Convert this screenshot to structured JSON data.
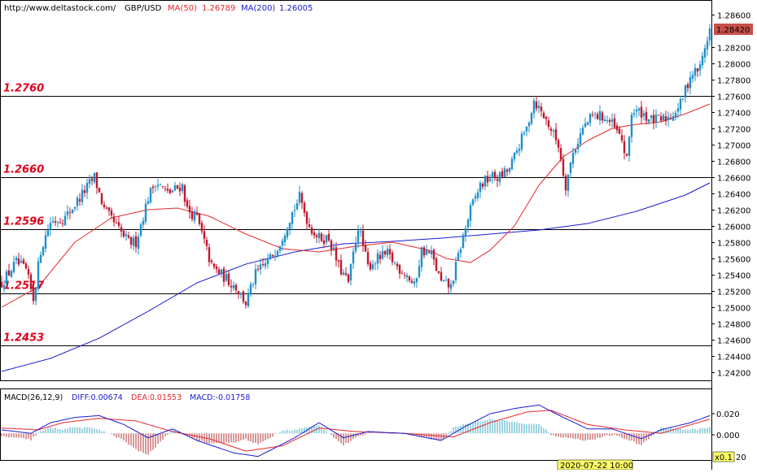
{
  "header": {
    "url": "http://www.deltastock.com/",
    "symbol": "GBP/USD",
    "ma50_label": "MA(50)",
    "ma50_value": "1.26789",
    "ma200_label": "MA(200)",
    "ma200_value": "1.26005"
  },
  "colors": {
    "candle_up": "#1e90c8",
    "candle_down": "#c0182e",
    "ma50": "#e8262b",
    "ma200": "#1a1ad0",
    "level_text": "#e0001a",
    "diff": "#1a1ad0",
    "dea": "#e8262b",
    "hist_pos": "#3aa8c0",
    "hist_neg": "#b03030",
    "last_price_box": "#c8504a"
  },
  "levels": [
    {
      "label": "1.2760",
      "value": 1.276
    },
    {
      "label": "1.2660",
      "value": 1.266
    },
    {
      "label": "1.2596",
      "value": 1.2596
    },
    {
      "label": "1.2517",
      "value": 1.2517
    },
    {
      "label": "1.2453",
      "value": 1.2453
    }
  ],
  "price_axis": {
    "min": 1.241,
    "max": 1.2878,
    "ticks": [
      "1.28600",
      "1.28200",
      "1.28000",
      "1.27800",
      "1.27600",
      "1.27400",
      "1.27200",
      "1.27000",
      "1.26800",
      "1.26600",
      "1.26400",
      "1.26200",
      "1.26000",
      "1.25800",
      "1.25600",
      "1.25400",
      "1.25200",
      "1.25000",
      "1.24800",
      "1.24600",
      "1.24400",
      "1.24200"
    ],
    "last_price": "1.28420"
  },
  "macd_panel": {
    "label": "MACD(26,12,9)",
    "diff_label": "DIFF:0.00674",
    "dea_label": "DEA:0.01553",
    "macd_label": "MACD:-0.01758",
    "ticks": [
      "0.020",
      "0.000"
    ],
    "multiplier": "x0.1",
    "tick_partial": "20",
    "ymin": -0.03,
    "ymax": 0.035
  },
  "time_axis": {
    "crosshair_time": "2020-07-22 10:00"
  },
  "chart_data": {
    "type": "candlestick",
    "title": "GBP/USD",
    "anchors": [
      [
        0,
        1.253
      ],
      [
        6,
        1.2555
      ],
      [
        10,
        1.2545
      ],
      [
        13,
        1.251
      ],
      [
        16,
        1.257
      ],
      [
        20,
        1.2605
      ],
      [
        26,
        1.261
      ],
      [
        32,
        1.2635
      ],
      [
        38,
        1.266
      ],
      [
        42,
        1.262
      ],
      [
        48,
        1.2595
      ],
      [
        52,
        1.258
      ],
      [
        55,
        1.258
      ],
      [
        60,
        1.2635
      ],
      [
        63,
        1.2655
      ],
      [
        68,
        1.264
      ],
      [
        74,
        1.265
      ],
      [
        76,
        1.262
      ],
      [
        80,
        1.261
      ],
      [
        86,
        1.255
      ],
      [
        90,
        1.254
      ],
      [
        96,
        1.2525
      ],
      [
        100,
        1.2505
      ],
      [
        104,
        1.254
      ],
      [
        110,
        1.256
      ],
      [
        114,
        1.258
      ],
      [
        118,
        1.261
      ],
      [
        122,
        1.2635
      ],
      [
        126,
        1.26
      ],
      [
        130,
        1.2585
      ],
      [
        134,
        1.2585
      ],
      [
        138,
        1.255
      ],
      [
        142,
        1.253
      ],
      [
        146,
        1.26
      ],
      [
        150,
        1.255
      ],
      [
        154,
        1.256
      ],
      [
        158,
        1.2565
      ],
      [
        162,
        1.255
      ],
      [
        166,
        1.254
      ],
      [
        169,
        1.2525
      ],
      [
        172,
        1.257
      ],
      [
        176,
        1.2565
      ],
      [
        180,
        1.253
      ],
      [
        184,
        1.2525
      ],
      [
        188,
        1.2575
      ],
      [
        192,
        1.262
      ],
      [
        196,
        1.265
      ],
      [
        200,
        1.266
      ],
      [
        204,
        1.266
      ],
      [
        208,
        1.267
      ],
      [
        212,
        1.27
      ],
      [
        215,
        1.272
      ],
      [
        218,
        1.2755
      ],
      [
        221,
        1.274
      ],
      [
        224,
        1.2725
      ],
      [
        228,
        1.27
      ],
      [
        231,
        1.265
      ],
      [
        234,
        1.269
      ],
      [
        238,
        1.272
      ],
      [
        242,
        1.2735
      ],
      [
        246,
        1.2735
      ],
      [
        250,
        1.2725
      ],
      [
        254,
        1.2705
      ],
      [
        256,
        1.268
      ],
      [
        258,
        1.274
      ],
      [
        262,
        1.274
      ],
      [
        266,
        1.273
      ],
      [
        270,
        1.273
      ],
      [
        274,
        1.2735
      ],
      [
        278,
        1.275
      ],
      [
        282,
        1.2785
      ],
      [
        286,
        1.2795
      ],
      [
        288,
        1.282
      ],
      [
        290,
        1.2842
      ]
    ],
    "ma50_anchors": [
      [
        0,
        1.25
      ],
      [
        15,
        1.2525
      ],
      [
        30,
        1.258
      ],
      [
        45,
        1.261
      ],
      [
        60,
        1.262
      ],
      [
        72,
        1.2622
      ],
      [
        85,
        1.2612
      ],
      [
        100,
        1.259
      ],
      [
        115,
        1.2572
      ],
      [
        130,
        1.2568
      ],
      [
        145,
        1.2575
      ],
      [
        160,
        1.258
      ],
      [
        175,
        1.257
      ],
      [
        182,
        1.256
      ],
      [
        192,
        1.2555
      ],
      [
        200,
        1.257
      ],
      [
        210,
        1.26
      ],
      [
        220,
        1.265
      ],
      [
        230,
        1.2685
      ],
      [
        240,
        1.2705
      ],
      [
        250,
        1.272
      ],
      [
        260,
        1.2725
      ],
      [
        270,
        1.2728
      ],
      [
        280,
        1.2738
      ],
      [
        290,
        1.275
      ]
    ],
    "ma200_anchors": [
      [
        0,
        1.2421
      ],
      [
        20,
        1.2437
      ],
      [
        40,
        1.2462
      ],
      [
        60,
        1.2495
      ],
      [
        80,
        1.253
      ],
      [
        100,
        1.2553
      ],
      [
        120,
        1.2568
      ],
      [
        140,
        1.2578
      ],
      [
        160,
        1.2581
      ],
      [
        180,
        1.2585
      ],
      [
        200,
        1.259
      ],
      [
        220,
        1.2595
      ],
      [
        240,
        1.2603
      ],
      [
        260,
        1.2618
      ],
      [
        280,
        1.2638
      ],
      [
        290,
        1.2653
      ]
    ],
    "macd_diff_anchors": [
      [
        0,
        0.004
      ],
      [
        12,
        0.0
      ],
      [
        20,
        0.012
      ],
      [
        30,
        0.018
      ],
      [
        40,
        0.02
      ],
      [
        50,
        0.01
      ],
      [
        60,
        -0.005
      ],
      [
        70,
        0.005
      ],
      [
        80,
        -0.008
      ],
      [
        95,
        -0.022
      ],
      [
        105,
        -0.026
      ],
      [
        120,
        -0.005
      ],
      [
        130,
        0.012
      ],
      [
        140,
        -0.005
      ],
      [
        150,
        0.002
      ],
      [
        165,
        0.0
      ],
      [
        180,
        -0.008
      ],
      [
        190,
        0.008
      ],
      [
        200,
        0.022
      ],
      [
        210,
        0.028
      ],
      [
        220,
        0.032
      ],
      [
        230,
        0.018
      ],
      [
        240,
        0.005
      ],
      [
        250,
        0.005
      ],
      [
        262,
        -0.006
      ],
      [
        270,
        0.004
      ],
      [
        282,
        0.012
      ],
      [
        290,
        0.02
      ]
    ],
    "macd_dea_anchors": [
      [
        0,
        0.006
      ],
      [
        15,
        0.004
      ],
      [
        25,
        0.012
      ],
      [
        40,
        0.017
      ],
      [
        55,
        0.014
      ],
      [
        70,
        0.002
      ],
      [
        85,
        -0.006
      ],
      [
        100,
        -0.02
      ],
      [
        115,
        -0.014
      ],
      [
        130,
        0.006
      ],
      [
        145,
        0.002
      ],
      [
        165,
        0.0
      ],
      [
        185,
        -0.004
      ],
      [
        200,
        0.012
      ],
      [
        215,
        0.024
      ],
      [
        225,
        0.026
      ],
      [
        240,
        0.01
      ],
      [
        255,
        0.004
      ],
      [
        270,
        0.0
      ],
      [
        280,
        0.008
      ],
      [
        290,
        0.016
      ]
    ]
  }
}
